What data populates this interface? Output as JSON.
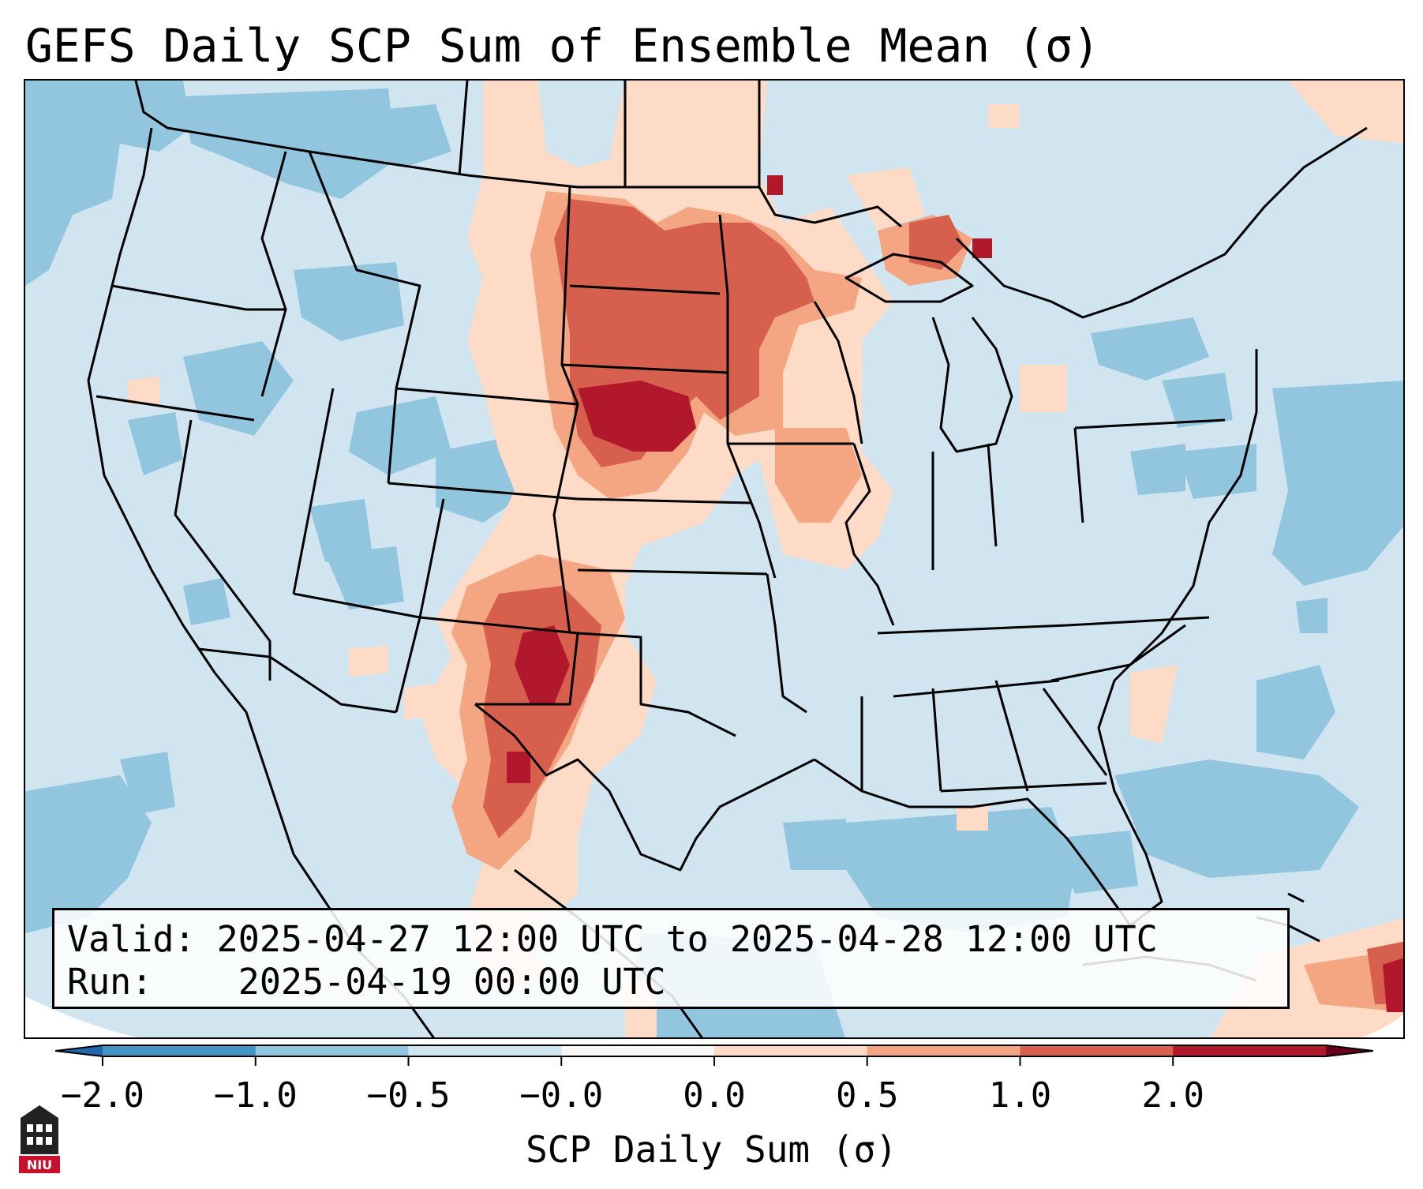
{
  "title": "GEFS Daily SCP Sum of Ensemble Mean (σ)",
  "info": {
    "valid_label": "Valid:",
    "valid_value": "2025-04-27 12:00 UTC to 2025-04-28 12:00 UTC",
    "run_label": "Run:",
    "run_value": "2025-04-19 00:00 UTC"
  },
  "colorbar": {
    "label": "SCP Daily Sum (σ)",
    "ticks": [
      "−2.0",
      "−1.0",
      "−0.5",
      "−0.0",
      "0.0",
      "0.5",
      "1.0",
      "2.0"
    ],
    "colors": [
      "#4393c3",
      "#92c5de",
      "#d1e5f0",
      "#f7f7f7",
      "#fddbc7",
      "#f4a582",
      "#d6604d",
      "#b2182b"
    ],
    "extend": "both"
  },
  "map": {
    "region": "CONUS",
    "field_colors": {
      "strong_negative": "#92c5de",
      "weak_negative": "#d1e5f0",
      "weak_positive": "#fddbc7",
      "moderate_positive": "#f4a582",
      "strong_positive": "#d6604d",
      "max_positive": "#b2182b"
    }
  },
  "logo": {
    "name": "NIU"
  }
}
